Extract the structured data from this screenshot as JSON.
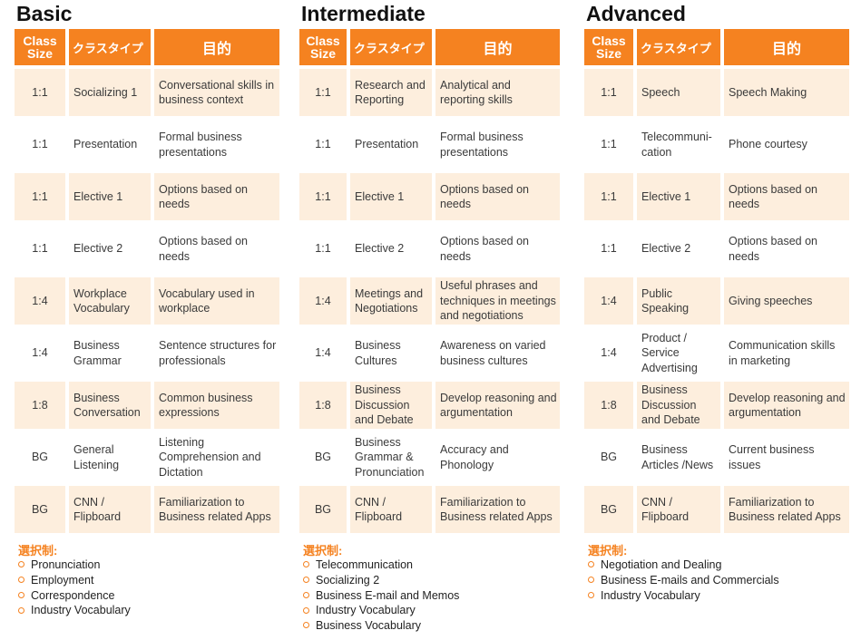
{
  "colors": {
    "accent": "#f58220",
    "shade": "#fdeedd"
  },
  "headers": {
    "size": "Class Size",
    "type": "クラスタイプ",
    "purpose": "目的"
  },
  "elective_label": "選択制:",
  "columns": [
    {
      "title": "Basic",
      "rows": [
        {
          "size": "1:1",
          "type": "Socializing 1",
          "purpose": "Conversational skills in business context"
        },
        {
          "size": "1:1",
          "type": "Presentation",
          "purpose": "Formal business presentations"
        },
        {
          "size": "1:1",
          "type": "Elective 1",
          "purpose": "Options based on needs"
        },
        {
          "size": "1:1",
          "type": "Elective 2",
          "purpose": "Options based on needs"
        },
        {
          "size": "1:4",
          "type": "Workplace Vocabulary",
          "purpose": "Vocabulary used in workplace"
        },
        {
          "size": "1:4",
          "type": "Business Grammar",
          "purpose": "Sentence structures for professionals"
        },
        {
          "size": "1:8",
          "type": "Business Conversation",
          "purpose": "Common business expressions"
        },
        {
          "size": "BG",
          "type": "General Listening",
          "purpose": "Listening Comprehension and Dictation"
        },
        {
          "size": "BG",
          "type": "CNN / Flipboard",
          "purpose": "Familiarization to Business related Apps"
        }
      ],
      "electives": [
        "Pronunciation",
        "Employment",
        "Correspondence",
        "Industry Vocabulary"
      ]
    },
    {
      "title": "Intermediate",
      "rows": [
        {
          "size": "1:1",
          "type": "Research and Reporting",
          "purpose": "Analytical and reporting skills"
        },
        {
          "size": "1:1",
          "type": "Presentation",
          "purpose": "Formal business presentations"
        },
        {
          "size": "1:1",
          "type": "Elective 1",
          "purpose": "Options based on needs"
        },
        {
          "size": "1:1",
          "type": "Elective 2",
          "purpose": "Options based on needs"
        },
        {
          "size": "1:4",
          "type": "Meetings and Negotiations",
          "purpose": "Useful phrases and techniques in meetings and negotiations"
        },
        {
          "size": "1:4",
          "type": "Business Cultures",
          "purpose": "Awareness on varied business cultures"
        },
        {
          "size": "1:8",
          "type": "Business Discussion and Debate",
          "purpose": "Develop reasoning and argumentation"
        },
        {
          "size": "BG",
          "type": "Business Grammar & Pronunciation",
          "purpose": "Accuracy and Phonology"
        },
        {
          "size": "BG",
          "type": "CNN / Flipboard",
          "purpose": "Familiarization to Business related Apps"
        }
      ],
      "electives": [
        "Telecommunication",
        "Socializing 2",
        "Business E-mail and Memos",
        "Industry Vocabulary",
        "Business Vocabulary"
      ]
    },
    {
      "title": "Advanced",
      "rows": [
        {
          "size": "1:1",
          "type": "Speech",
          "purpose": "Speech Making"
        },
        {
          "size": "1:1",
          "type": "Telecommuni-cation",
          "purpose": "Phone courtesy"
        },
        {
          "size": "1:1",
          "type": "Elective 1",
          "purpose": "Options based on needs"
        },
        {
          "size": "1:1",
          "type": "Elective 2",
          "purpose": "Options based on needs"
        },
        {
          "size": "1:4",
          "type": "Public Speaking",
          "purpose": "Giving speeches"
        },
        {
          "size": "1:4",
          "type": "Product / Service Advertising",
          "purpose": "Communication skills in marketing"
        },
        {
          "size": "1:8",
          "type": "Business Discussion and Debate",
          "purpose": "Develop reasoning and argumentation"
        },
        {
          "size": "BG",
          "type": "Business Articles /News",
          "purpose": "Current business issues"
        },
        {
          "size": "BG",
          "type": "CNN / Flipboard",
          "purpose": "Familiarization to Business related Apps"
        }
      ],
      "electives": [
        "Negotiation and Dealing",
        "Business E-mails and Commercials",
        "Industry Vocabulary"
      ]
    }
  ]
}
